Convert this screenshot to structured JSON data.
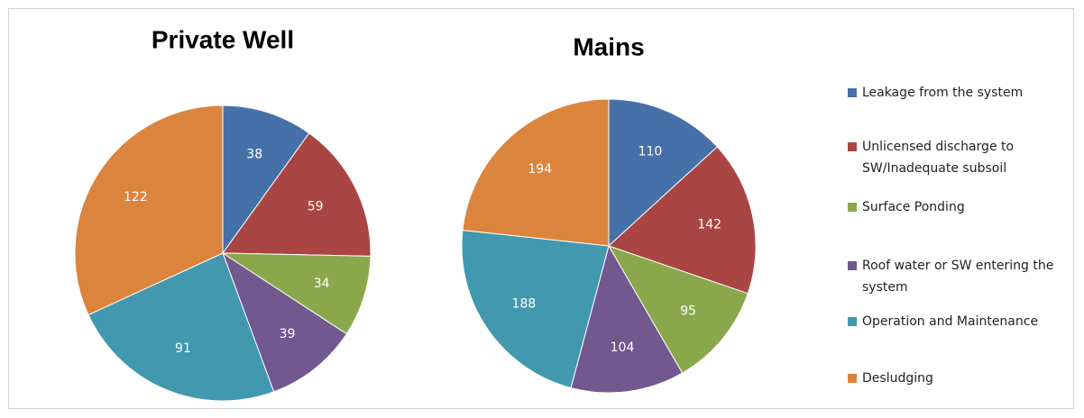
{
  "chart_data": [
    {
      "type": "pie",
      "title": "Private Well",
      "values": [
        38,
        59,
        34,
        39,
        91,
        122
      ]
    },
    {
      "type": "pie",
      "title": "Mains",
      "values": [
        110,
        142,
        95,
        104,
        188,
        194
      ]
    }
  ],
  "legend": {
    "labels": [
      "Leakage from the system",
      "Unlicensed discharge to SW/Inadequate subsoil",
      "Surface Ponding",
      "Roof water or SW entering the system",
      "Operation and Maintenance",
      "Desludging"
    ],
    "colors": [
      "#4671a8",
      "#a94543",
      "#8aa84b",
      "#71588f",
      "#4198af",
      "#db843d"
    ]
  }
}
